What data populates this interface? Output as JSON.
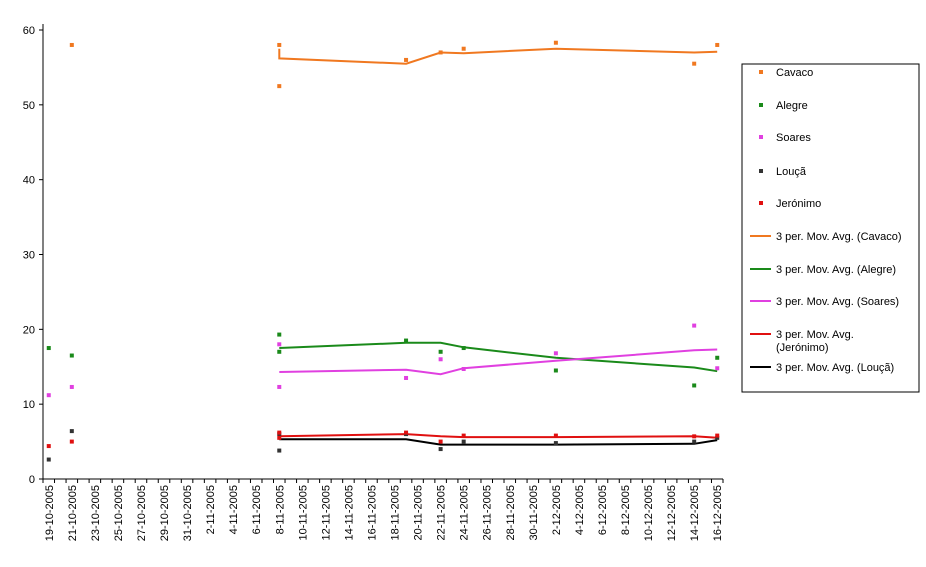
{
  "chart_data": {
    "type": "scatter",
    "title": "",
    "xlabel": "",
    "ylabel": "",
    "ylim": [
      0,
      60
    ],
    "yticks": [
      0,
      10,
      20,
      30,
      40,
      50,
      60
    ],
    "xlim": [
      "2005-10-19",
      "2005-12-16"
    ],
    "xtick_labels": [
      "19-10-2005",
      "21-10-2005",
      "23-10-2005",
      "25-10-2005",
      "27-10-2005",
      "29-10-2005",
      "31-10-2005",
      "2-11-2005",
      "4-11-2005",
      "6-11-2005",
      "8-11-2005",
      "10-11-2005",
      "12-11-2005",
      "14-11-2005",
      "16-11-2005",
      "18-11-2005",
      "20-11-2005",
      "22-11-2005",
      "24-11-2005",
      "26-11-2005",
      "28-11-2005",
      "30-11-2005",
      "2-12-2005",
      "4-12-2005",
      "6-12-2005",
      "8-12-2005",
      "10-12-2005",
      "12-12-2005",
      "14-12-2005",
      "16-12-2005"
    ],
    "grid": false,
    "legend_position": "right",
    "series": [
      {
        "name": "Cavaco",
        "color": "#f07820",
        "marker": "square",
        "points": [
          [
            "2005-10-21",
            58.0
          ],
          [
            "2005-11-08",
            52.5
          ],
          [
            "2005-11-08",
            58.0
          ],
          [
            "2005-11-19",
            56.0
          ],
          [
            "2005-11-22",
            57.0
          ],
          [
            "2005-11-24",
            57.5
          ],
          [
            "2005-12-02",
            58.3
          ],
          [
            "2005-12-14",
            55.5
          ],
          [
            "2005-12-16",
            58.0
          ]
        ]
      },
      {
        "name": "Alegre",
        "color": "#1a8a1a",
        "marker": "square",
        "points": [
          [
            "2005-10-19",
            17.5
          ],
          [
            "2005-10-21",
            16.5
          ],
          [
            "2005-11-08",
            19.3
          ],
          [
            "2005-11-08",
            17.0
          ],
          [
            "2005-11-19",
            18.5
          ],
          [
            "2005-11-22",
            17.0
          ],
          [
            "2005-11-24",
            17.5
          ],
          [
            "2005-12-02",
            14.5
          ],
          [
            "2005-12-14",
            12.5
          ],
          [
            "2005-12-16",
            16.2
          ]
        ]
      },
      {
        "name": "Soares",
        "color": "#e040e0",
        "marker": "square",
        "points": [
          [
            "2005-10-19",
            11.2
          ],
          [
            "2005-10-21",
            12.3
          ],
          [
            "2005-11-08",
            18.0
          ],
          [
            "2005-11-08",
            12.3
          ],
          [
            "2005-11-19",
            13.5
          ],
          [
            "2005-11-22",
            16.0
          ],
          [
            "2005-11-24",
            14.7
          ],
          [
            "2005-12-02",
            16.8
          ],
          [
            "2005-12-14",
            20.5
          ],
          [
            "2005-12-16",
            14.8
          ]
        ]
      },
      {
        "name": "Louçã",
        "color": "#333333",
        "marker": "square",
        "points": [
          [
            "2005-10-19",
            2.6
          ],
          [
            "2005-10-21",
            6.4
          ],
          [
            "2005-11-08",
            3.8
          ],
          [
            "2005-11-08",
            6.0
          ],
          [
            "2005-11-19",
            6.0
          ],
          [
            "2005-11-22",
            4.0
          ],
          [
            "2005-11-24",
            5.0
          ],
          [
            "2005-12-02",
            4.8
          ],
          [
            "2005-12-14",
            5.0
          ],
          [
            "2005-12-16",
            5.5
          ]
        ]
      },
      {
        "name": "Jerónimo",
        "color": "#e01010",
        "marker": "square",
        "points": [
          [
            "2005-10-19",
            4.4
          ],
          [
            "2005-10-21",
            5.0
          ],
          [
            "2005-11-08",
            5.5
          ],
          [
            "2005-11-08",
            6.2
          ],
          [
            "2005-11-19",
            6.2
          ],
          [
            "2005-11-22",
            5.0
          ],
          [
            "2005-11-24",
            5.8
          ],
          [
            "2005-12-02",
            5.8
          ],
          [
            "2005-12-14",
            5.7
          ],
          [
            "2005-12-16",
            5.8
          ]
        ]
      },
      {
        "name": "3 per. Mov. Avg. (Cavaco)",
        "color": "#f07820",
        "marker": "line",
        "points": [
          [
            "2005-11-08",
            57.5
          ],
          [
            "2005-11-08",
            56.2
          ],
          [
            "2005-11-19",
            55.5
          ],
          [
            "2005-11-22",
            57.0
          ],
          [
            "2005-11-24",
            56.9
          ],
          [
            "2005-12-02",
            57.5
          ],
          [
            "2005-12-14",
            57.0
          ],
          [
            "2005-12-16",
            57.1
          ]
        ]
      },
      {
        "name": "3 per. Mov. Avg. (Alegre)",
        "color": "#1a8a1a",
        "marker": "line",
        "points": [
          [
            "2005-11-08",
            17.5
          ],
          [
            "2005-11-19",
            18.2
          ],
          [
            "2005-11-22",
            18.2
          ],
          [
            "2005-11-24",
            17.6
          ],
          [
            "2005-12-02",
            16.2
          ],
          [
            "2005-12-14",
            14.9
          ],
          [
            "2005-12-16",
            14.4
          ]
        ]
      },
      {
        "name": "3 per. Mov. Avg. (Soares)",
        "color": "#e040e0",
        "marker": "line",
        "points": [
          [
            "2005-11-08",
            14.3
          ],
          [
            "2005-11-19",
            14.6
          ],
          [
            "2005-11-22",
            14.0
          ],
          [
            "2005-11-24",
            14.8
          ],
          [
            "2005-12-02",
            15.8
          ],
          [
            "2005-12-14",
            17.2
          ],
          [
            "2005-12-16",
            17.3
          ]
        ]
      },
      {
        "name": "3 per. Mov. Avg. (Jerónimo)",
        "color": "#e01010",
        "marker": "line",
        "points": [
          [
            "2005-11-08",
            5.7
          ],
          [
            "2005-11-19",
            6.0
          ],
          [
            "2005-11-22",
            5.7
          ],
          [
            "2005-11-24",
            5.6
          ],
          [
            "2005-12-02",
            5.6
          ],
          [
            "2005-12-14",
            5.7
          ],
          [
            "2005-12-16",
            5.5
          ]
        ]
      },
      {
        "name": "3 per. Mov. Avg. (Louçã)",
        "color": "#000000",
        "marker": "line",
        "points": [
          [
            "2005-11-08",
            5.3
          ],
          [
            "2005-11-19",
            5.3
          ],
          [
            "2005-11-22",
            4.6
          ],
          [
            "2005-11-24",
            4.6
          ],
          [
            "2005-12-02",
            4.6
          ],
          [
            "2005-12-14",
            4.7
          ],
          [
            "2005-12-16",
            5.2
          ]
        ]
      }
    ]
  }
}
